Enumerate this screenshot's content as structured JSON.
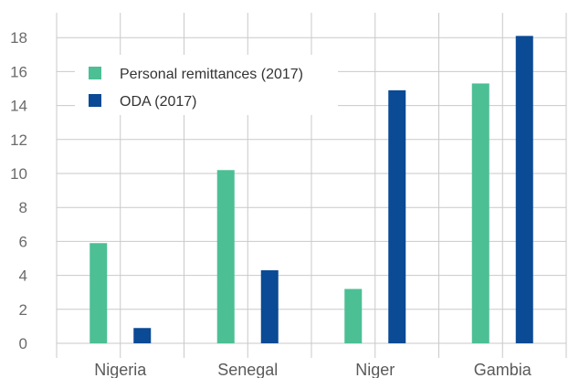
{
  "chart_data": {
    "type": "bar",
    "categories": [
      "Nigeria",
      "Senegal",
      "Niger",
      "Gambia"
    ],
    "series": [
      {
        "name": "Personal remittances (2017)",
        "values": [
          5.9,
          10.2,
          3.2,
          15.3
        ],
        "color": "#4cbf95"
      },
      {
        "name": "ODA (2017)",
        "values": [
          0.9,
          4.3,
          14.9,
          18.1
        ],
        "color": "#0b4a94"
      }
    ],
    "title": "",
    "xlabel": "",
    "ylabel": "",
    "ylim": [
      0,
      19
    ],
    "yticks": [
      0,
      2,
      4,
      6,
      8,
      10,
      12,
      14,
      16,
      18
    ],
    "grid": true,
    "legend_position": "top-left"
  }
}
